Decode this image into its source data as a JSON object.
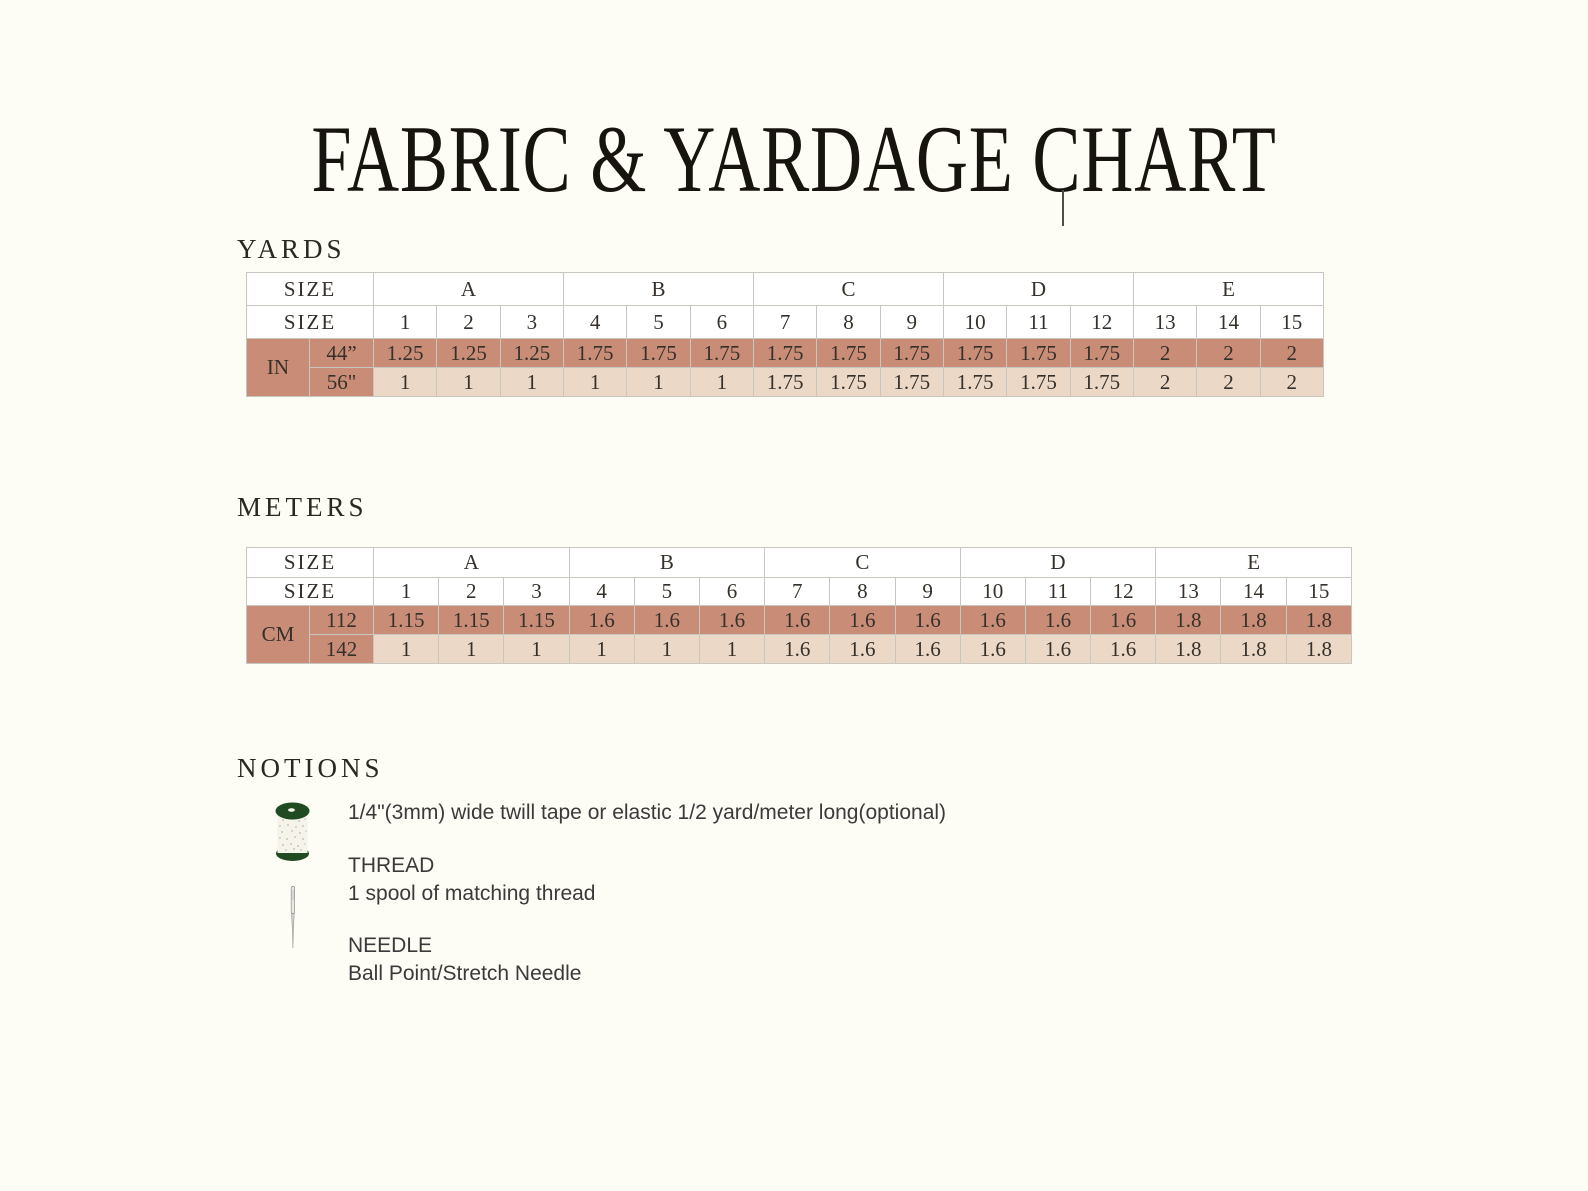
{
  "title": "FABRIC & YARDAGE CHART",
  "colors": {
    "background": "#FDFCF5",
    "dark_row": "#C98D77",
    "light_row": "#ECD8C6",
    "spool_green": "#1F4A22"
  },
  "yards": {
    "heading": "YARDS",
    "col_header": "SIZE",
    "size_header": "SIZE",
    "unit": "IN",
    "groups": [
      "A",
      "B",
      "C",
      "D",
      "E"
    ],
    "sizes": [
      "1",
      "2",
      "3",
      "4",
      "5",
      "6",
      "7",
      "8",
      "9",
      "10",
      "11",
      "12",
      "13",
      "14",
      "15"
    ],
    "rows": [
      {
        "label": "44”",
        "shade": "dark",
        "values": [
          "1.25",
          "1.25",
          "1.25",
          "1.75",
          "1.75",
          "1.75",
          "1.75",
          "1.75",
          "1.75",
          "1.75",
          "1.75",
          "1.75",
          "2",
          "2",
          "2"
        ]
      },
      {
        "label": "56\"",
        "shade": "light",
        "values": [
          "1",
          "1",
          "1",
          "1",
          "1",
          "1",
          "1.75",
          "1.75",
          "1.75",
          "1.75",
          "1.75",
          "1.75",
          "2",
          "2",
          "2"
        ]
      }
    ]
  },
  "meters": {
    "heading": "METERS",
    "col_header": "SIZE",
    "size_header": "SIZE",
    "unit": "CM",
    "groups": [
      "A",
      "B",
      "C",
      "D",
      "E"
    ],
    "sizes": [
      "1",
      "2",
      "3",
      "4",
      "5",
      "6",
      "7",
      "8",
      "9",
      "10",
      "11",
      "12",
      "13",
      "14",
      "15"
    ],
    "rows": [
      {
        "label": "112",
        "shade": "dark",
        "values": [
          "1.15",
          "1.15",
          "1.15",
          "1.6",
          "1.6",
          "1.6",
          "1.6",
          "1.6",
          "1.6",
          "1.6",
          "1.6",
          "1.6",
          "1.8",
          "1.8",
          "1.8"
        ]
      },
      {
        "label": "142",
        "shade": "light",
        "values": [
          "1",
          "1",
          "1",
          "1",
          "1",
          "1",
          "1.6",
          "1.6",
          "1.6",
          "1.6",
          "1.6",
          "1.6",
          "1.8",
          "1.8",
          "1.8"
        ]
      }
    ]
  },
  "notions": {
    "heading": "NOTIONS",
    "tape_icon": "thread-spool-icon",
    "tape_line": "1/4\"(3mm) wide twill tape or elastic 1/2 yard/meter long(optional)",
    "thread_title": "THREAD",
    "thread_line": "1 spool of matching thread",
    "needle_icon": "needle-icon",
    "needle_title": "NEEDLE",
    "needle_line": "Ball Point/Stretch Needle"
  }
}
